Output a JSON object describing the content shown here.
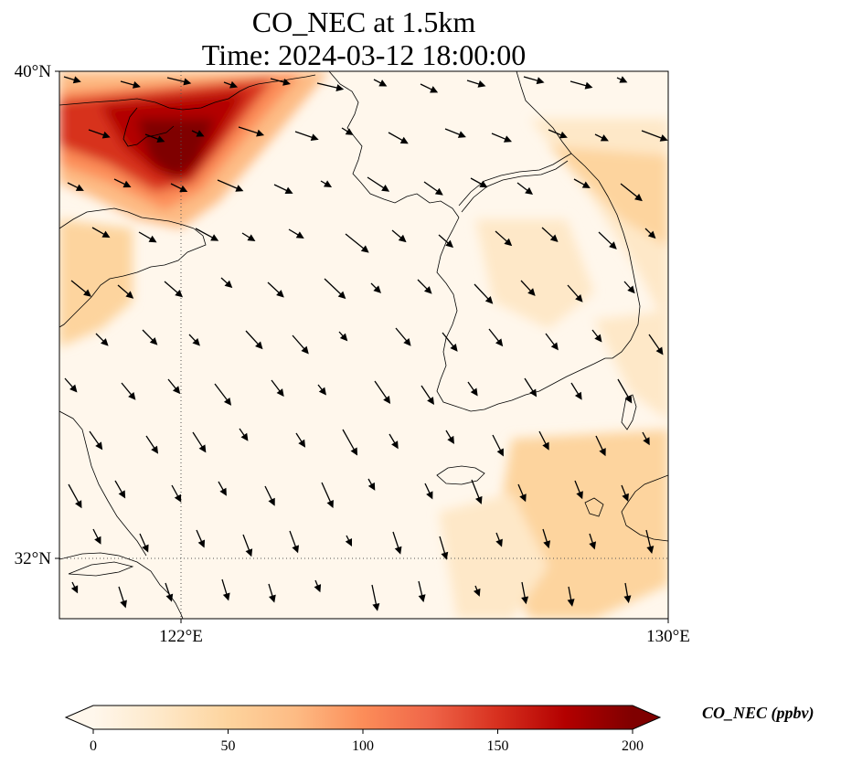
{
  "title_line1": "CO_NEC at 1.5km",
  "title_line2": "Time: 2024-03-12 18:00:00",
  "axes": {
    "lat_ticks": [
      {
        "value": 40,
        "label": "40°N"
      },
      {
        "value": 32,
        "label": "32°N"
      }
    ],
    "lon_ticks": [
      {
        "value": 122,
        "label": "122°E"
      },
      {
        "value": 130,
        "label": "130°E"
      }
    ],
    "lon_range": [
      120,
      130
    ],
    "lat_range": [
      31,
      40
    ],
    "gridlines": "dotted at 122°E and 32°N"
  },
  "colorbar": {
    "label": "CO_NEC (ppbv)",
    "ticks": [
      0,
      50,
      100,
      150,
      200
    ],
    "range": [
      0,
      200
    ],
    "extend": "both",
    "colormap": "OrRd",
    "colors": [
      "#fff7ec",
      "#fee8c8",
      "#fdd49e",
      "#fdbb84",
      "#fc8d59",
      "#ef6548",
      "#d7301f",
      "#b30000",
      "#7f0000"
    ]
  },
  "field": {
    "max_region_lon": 121.7,
    "max_region_lat": 38.8,
    "max_value": 190
  },
  "colors": {
    "coast": "#000000",
    "grid": "#555555",
    "arrow": "#000000"
  }
}
